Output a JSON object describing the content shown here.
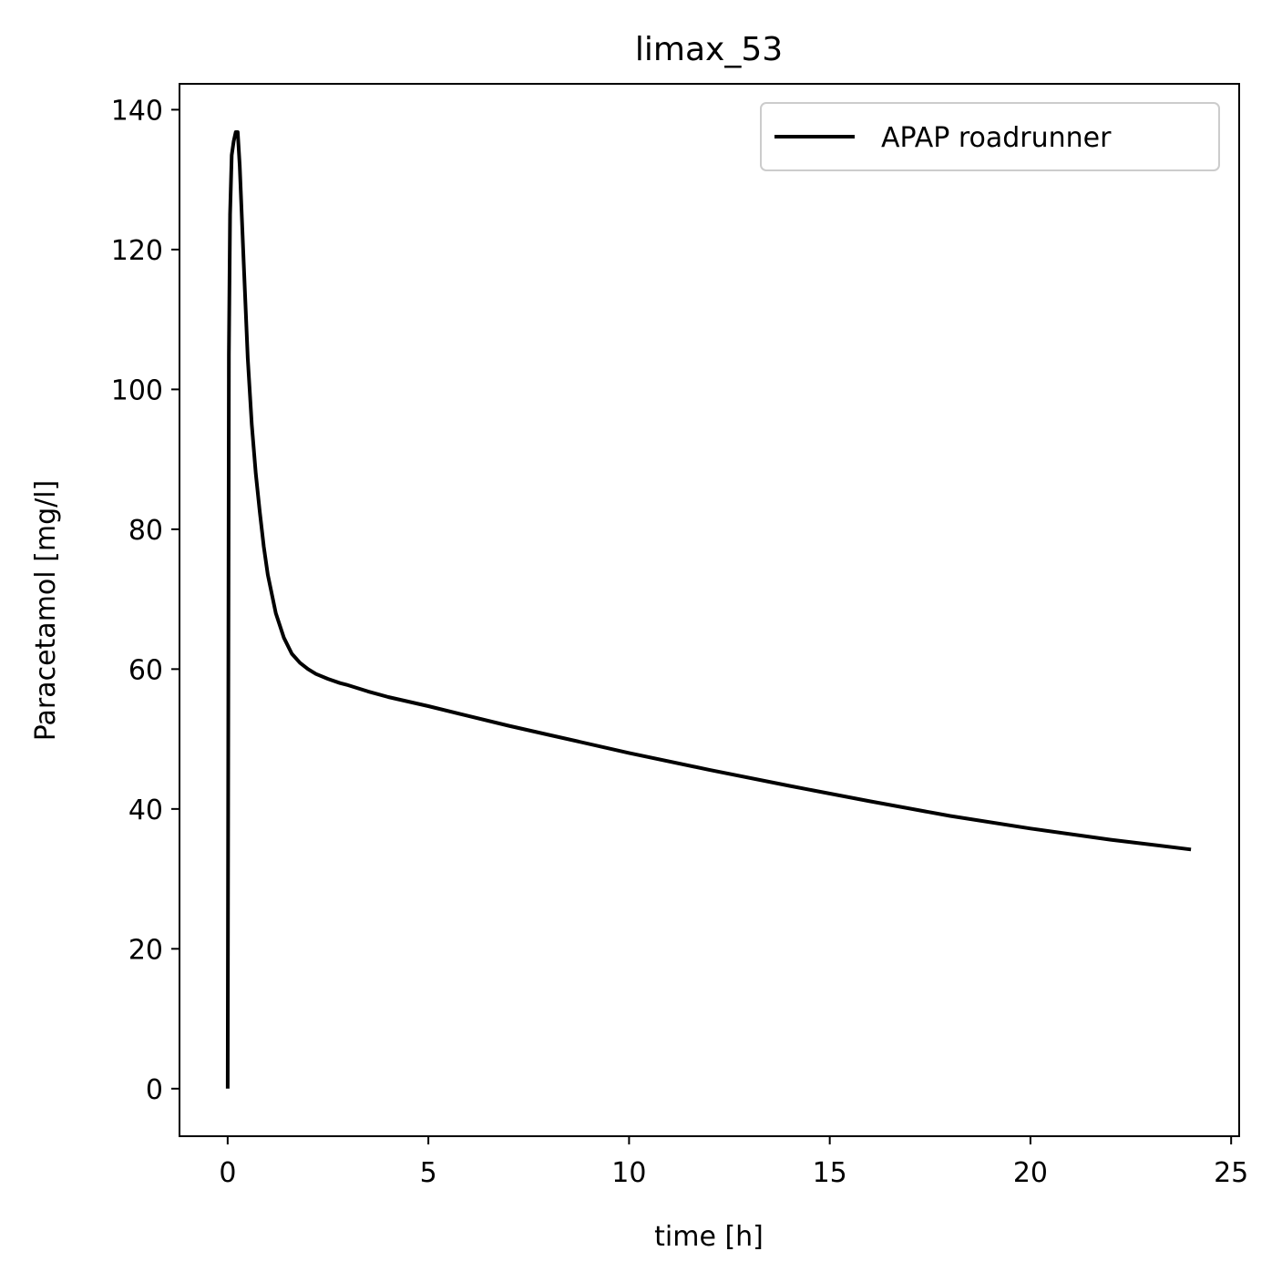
{
  "chart_data": {
    "type": "line",
    "title": "limax_53",
    "xlabel": "time [h]",
    "ylabel": "Paracetamol [mg/l]",
    "xlim": [
      -1.2,
      25.2
    ],
    "ylim": [
      -6.8,
      143.7
    ],
    "xticks": [
      0,
      5,
      10,
      15,
      20,
      25
    ],
    "yticks": [
      0,
      20,
      40,
      60,
      80,
      100,
      120,
      140
    ],
    "grid": false,
    "legend_position": "top-right",
    "series": [
      {
        "name": "APAP roadrunner",
        "color": "#000000",
        "x": [
          0,
          0.03,
          0.06,
          0.1,
          0.15,
          0.2,
          0.25,
          0.3,
          0.4,
          0.5,
          0.6,
          0.7,
          0.8,
          0.9,
          1.0,
          1.2,
          1.4,
          1.6,
          1.8,
          2.0,
          2.2,
          2.5,
          2.8,
          3.0,
          3.5,
          4.0,
          5.0,
          6.0,
          7.0,
          8.0,
          10.0,
          12.0,
          14.0,
          16.0,
          18.0,
          20.0,
          22.0,
          24.0
        ],
        "y": [
          0,
          105,
          125,
          133.5,
          135.5,
          136.8,
          136.8,
          132,
          118,
          104.5,
          95,
          88,
          82.5,
          77.5,
          73.5,
          68,
          64.5,
          62.2,
          60.9,
          60.0,
          59.3,
          58.6,
          58.0,
          57.7,
          56.8,
          56.0,
          54.7,
          53.3,
          51.9,
          50.6,
          48.0,
          45.6,
          43.3,
          41.1,
          39.0,
          37.2,
          35.6,
          34.2
        ]
      }
    ]
  }
}
